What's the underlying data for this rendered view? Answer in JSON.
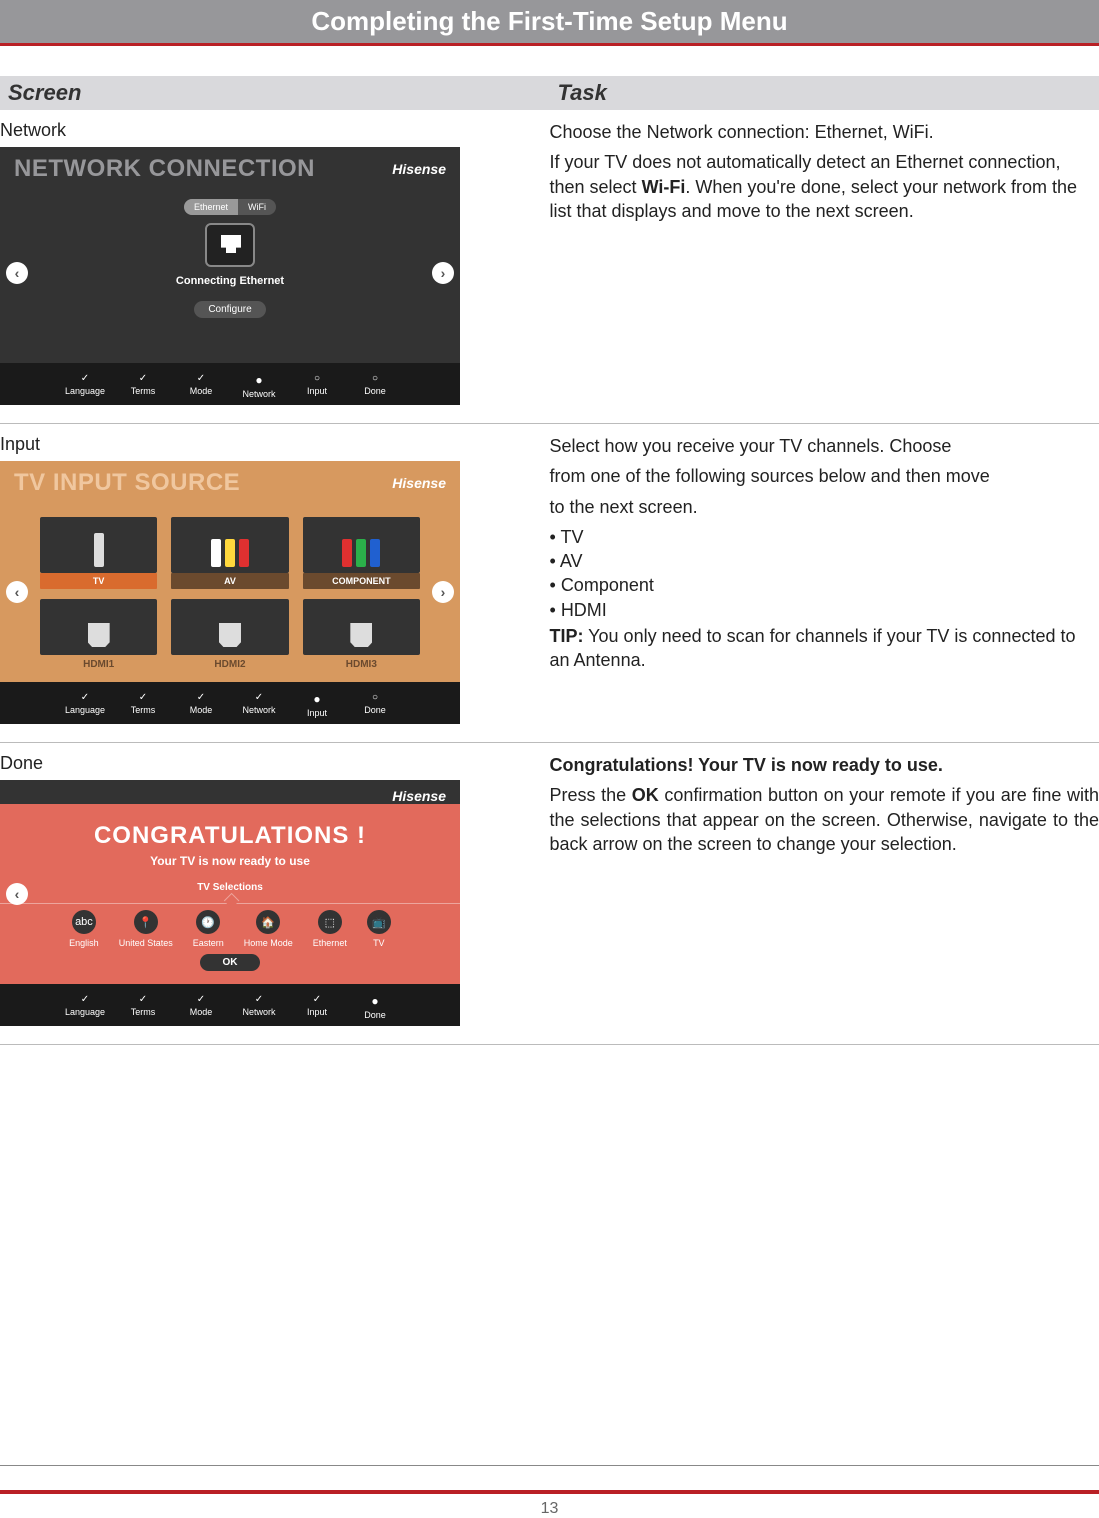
{
  "page": {
    "title": "Completing the First-Time Setup Menu",
    "number": "13"
  },
  "headers": {
    "screen": "Screen",
    "task": "Task"
  },
  "brand": "Hisense",
  "progress": [
    "Language",
    "Terms",
    "Mode",
    "Network",
    "Input",
    "Done"
  ],
  "network": {
    "row_label": "Network",
    "tv_title": "NETWORK CONNECTION",
    "toggle_a": "Ethernet",
    "toggle_b": "WiFi",
    "status": "Connecting Ethernet",
    "configure": "Configure",
    "current_step": 3,
    "t1": "Choose the Network connection: Ethernet, WiFi.",
    "t2a": "If your TV does not automatically detect an Ethernet connection, then select ",
    "t2b": "Wi-Fi",
    "t2c": ". When you're done, select your network from the list that displays and move to the next screen."
  },
  "input": {
    "row_label": "Input",
    "tv_title": "TV INPUT SOURCE",
    "tiles_top": [
      "TV",
      "AV",
      "COMPONENT"
    ],
    "tiles_bottom": [
      "HDMI1",
      "HDMI2",
      "HDMI3"
    ],
    "current_step": 4,
    "t1": "Select how you receive your TV channels. Choose",
    "t2": "from one of the following sources below and then move",
    "t3": "to the next screen.",
    "bullets": [
      "TV",
      "AV",
      "Component",
      "HDMI"
    ],
    "tip_label": "TIP:",
    "tip": " You only need to scan for channels if your TV is  connected to an Antenna."
  },
  "done": {
    "row_label": "Done",
    "congrats": "CONGRATULATIONS !",
    "sub": "Your TV is now ready to use",
    "sel_label": "TV Selections",
    "items": [
      "English",
      "United States",
      "Eastern",
      "Home Mode",
      "Ethernet",
      "TV"
    ],
    "icons": [
      "abc",
      "📍",
      "🕐",
      "🏠",
      "⬚",
      "📺"
    ],
    "ok": "OK",
    "current_step": 5,
    "t1": "Congratulations! Your TV is now ready to use.",
    "t2a": "Press the ",
    "t2b": "OK",
    "t2c": " confirmation button on your remote if you are fine with the selections that appear on the screen. Otherwise, navigate to the back arrow on the screen to change your selection."
  },
  "colors": {
    "title_bar": "#97979a",
    "accent_red": "#b92025",
    "header_bg": "#d9d9dc",
    "orange_bg": "#d7995f",
    "coral_bg": "#e26a5c"
  }
}
